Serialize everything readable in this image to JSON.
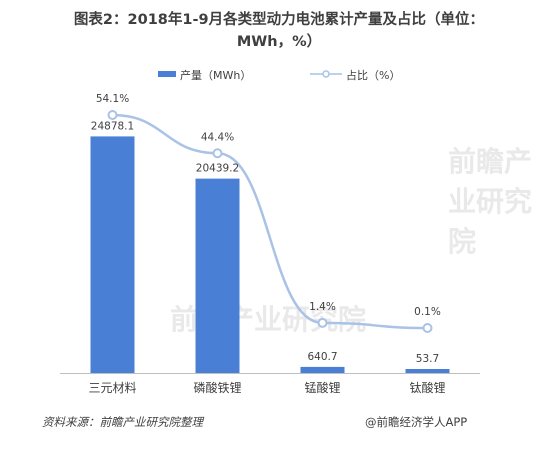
{
  "chart_data": {
    "type": "bar",
    "title_line1": "图表2：2018年1-9月各类型动力电池累计产量及占比（单位：",
    "title_line2": "MWh，%）",
    "categories": [
      "三元材料",
      "磷酸铁锂",
      "锰酸锂",
      "钛酸锂"
    ],
    "series": [
      {
        "name": "产量（MWh）",
        "type": "bar",
        "axis": "left",
        "values": [
          24878.1,
          20439.2,
          640.7,
          53.7
        ],
        "labels": [
          "24878.1",
          "20439.2",
          "640.7",
          "53.7"
        ]
      },
      {
        "name": "占比（%）",
        "type": "line",
        "axis": "right",
        "values": [
          54.1,
          44.4,
          1.4,
          0.1
        ],
        "labels": [
          "54.1%",
          "44.4%",
          "1.4%",
          "0.1%"
        ]
      }
    ],
    "legend_position": "top",
    "grid": false,
    "colors": {
      "bar": "#4a7fd6",
      "line": "#a9c2e6",
      "marker_fill": "#ffffff",
      "axis": "#bfbfbf",
      "text": "#3f3f3f"
    }
  },
  "footer": {
    "source": "资料来源：前瞻产业研究院整理",
    "brand": "@前瞻经济学人APP"
  },
  "watermark": {
    "text": "前瞻产业研究院"
  }
}
